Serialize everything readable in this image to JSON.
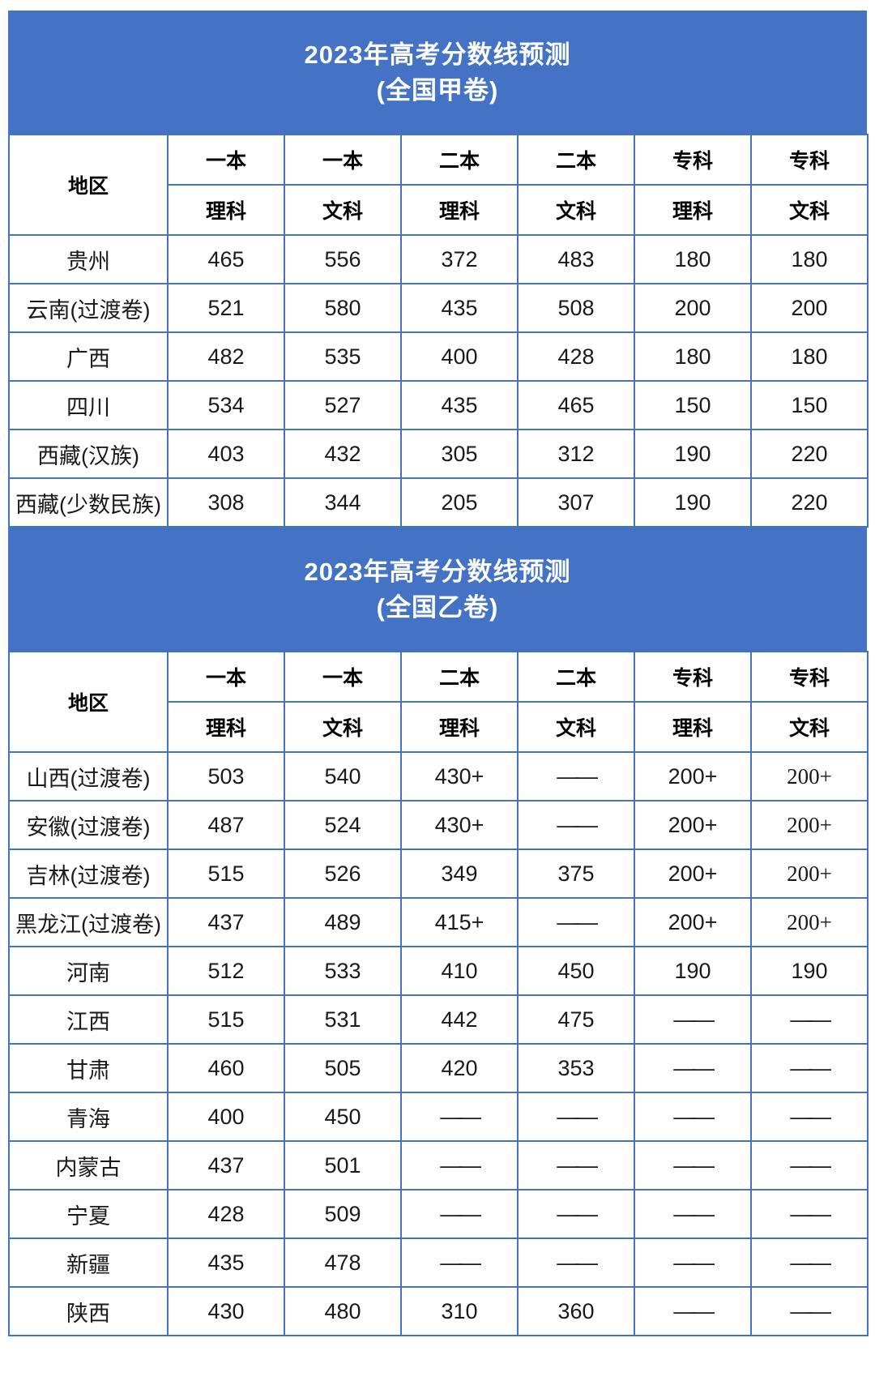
{
  "colors": {
    "band_background": "#4472C4",
    "grid_border": "#4472C4",
    "band_text": "#FFFFFF",
    "header_text": "#000000",
    "cell_text": "#1A1A1A",
    "page_background": "#FFFFFF"
  },
  "tables": [
    {
      "title_line1": "2023年高考分数线预测",
      "title_line2": "(全国甲卷)",
      "columns": {
        "region": "地区",
        "groups": [
          "一本",
          "一本",
          "二本",
          "二本",
          "专科",
          "专科"
        ],
        "subjects": [
          "理科",
          "文科",
          "理科",
          "文科",
          "理科",
          "文科"
        ]
      },
      "rows": [
        {
          "region": "贵州",
          "values": [
            "465",
            "556",
            "372",
            "483",
            "180",
            "180"
          ],
          "small_cols": []
        },
        {
          "region": "云南(过渡卷)",
          "values": [
            "521",
            "580",
            "435",
            "508",
            "200",
            "200"
          ],
          "small_cols": []
        },
        {
          "region": "广西",
          "values": [
            "482",
            "535",
            "400",
            "428",
            "180",
            "180"
          ],
          "small_cols": []
        },
        {
          "region": "四川",
          "values": [
            "534",
            "527",
            "435",
            "465",
            "150",
            "150"
          ],
          "small_cols": []
        },
        {
          "region": "西藏(汉族)",
          "values": [
            "403",
            "432",
            "305",
            "312",
            "190",
            "220"
          ],
          "small_cols": []
        },
        {
          "region": "西藏(少数民族)",
          "values": [
            "308",
            "344",
            "205",
            "307",
            "190",
            "220"
          ],
          "small_cols": []
        }
      ]
    },
    {
      "title_line1": "2023年高考分数线预测",
      "title_line2": "(全国乙卷)",
      "columns": {
        "region": "地区",
        "groups": [
          "一本",
          "一本",
          "二本",
          "二本",
          "专科",
          "专科"
        ],
        "subjects": [
          "理科",
          "文科",
          "理科",
          "文科",
          "理科",
          "文科"
        ]
      },
      "rows": [
        {
          "region": "山西(过渡卷)",
          "values": [
            "503",
            "540",
            "430+",
            "——",
            "200+",
            "200+"
          ],
          "small_cols": [
            5
          ]
        },
        {
          "region": "安徽(过渡卷)",
          "values": [
            "487",
            "524",
            "430+",
            "——",
            "200+",
            "200+"
          ],
          "small_cols": [
            5
          ]
        },
        {
          "region": "吉林(过渡卷)",
          "values": [
            "515",
            "526",
            "349",
            "375",
            "200+",
            "200+"
          ],
          "small_cols": [
            5
          ]
        },
        {
          "region": "黑龙江(过渡卷)",
          "values": [
            "437",
            "489",
            "415+",
            "——",
            "200+",
            "200+"
          ],
          "small_cols": [
            5
          ]
        },
        {
          "region": "河南",
          "values": [
            "512",
            "533",
            "410",
            "450",
            "190",
            "190"
          ],
          "small_cols": []
        },
        {
          "region": "江西",
          "values": [
            "515",
            "531",
            "442",
            "475",
            "——",
            "——"
          ],
          "small_cols": []
        },
        {
          "region": "甘肃",
          "values": [
            "460",
            "505",
            "420",
            "353",
            "——",
            "——"
          ],
          "small_cols": []
        },
        {
          "region": "青海",
          "values": [
            "400",
            "450",
            "——",
            "——",
            "——",
            "——"
          ],
          "small_cols": []
        },
        {
          "region": "内蒙古",
          "values": [
            "437",
            "501",
            "——",
            "——",
            "——",
            "——"
          ],
          "small_cols": []
        },
        {
          "region": "宁夏",
          "values": [
            "428",
            "509",
            "——",
            "——",
            "——",
            "——"
          ],
          "small_cols": []
        },
        {
          "region": "新疆",
          "values": [
            "435",
            "478",
            "——",
            "——",
            "——",
            "——"
          ],
          "small_cols": []
        },
        {
          "region": "陕西",
          "values": [
            "430",
            "480",
            "310",
            "360",
            "——",
            "——"
          ],
          "small_cols": []
        }
      ]
    }
  ],
  "chart_data": [
    {
      "type": "table",
      "title": "2023年高考分数线预测 (全国甲卷)",
      "columns": [
        "地区",
        "一本理科",
        "一本文科",
        "二本理科",
        "二本文科",
        "专科理科",
        "专科文科"
      ],
      "rows": [
        [
          "贵州",
          "465",
          "556",
          "372",
          "483",
          "180",
          "180"
        ],
        [
          "云南(过渡卷)",
          "521",
          "580",
          "435",
          "508",
          "200",
          "200"
        ],
        [
          "广西",
          "482",
          "535",
          "400",
          "428",
          "180",
          "180"
        ],
        [
          "四川",
          "534",
          "527",
          "435",
          "465",
          "150",
          "150"
        ],
        [
          "西藏(汉族)",
          "403",
          "432",
          "305",
          "312",
          "190",
          "220"
        ],
        [
          "西藏(少数民族)",
          "308",
          "344",
          "205",
          "307",
          "190",
          "220"
        ]
      ]
    },
    {
      "type": "table",
      "title": "2023年高考分数线预测 (全国乙卷)",
      "columns": [
        "地区",
        "一本理科",
        "一本文科",
        "二本理科",
        "二本文科",
        "专科理科",
        "专科文科"
      ],
      "rows": [
        [
          "山西(过渡卷)",
          "503",
          "540",
          "430+",
          "——",
          "200+",
          "200+"
        ],
        [
          "安徽(过渡卷)",
          "487",
          "524",
          "430+",
          "——",
          "200+",
          "200+"
        ],
        [
          "吉林(过渡卷)",
          "515",
          "526",
          "349",
          "375",
          "200+",
          "200+"
        ],
        [
          "黑龙江(过渡卷)",
          "437",
          "489",
          "415+",
          "——",
          "200+",
          "200+"
        ],
        [
          "河南",
          "512",
          "533",
          "410",
          "450",
          "190",
          "190"
        ],
        [
          "江西",
          "515",
          "531",
          "442",
          "475",
          "——",
          "——"
        ],
        [
          "甘肃",
          "460",
          "505",
          "420",
          "353",
          "——",
          "——"
        ],
        [
          "青海",
          "400",
          "450",
          "——",
          "——",
          "——",
          "——"
        ],
        [
          "内蒙古",
          "437",
          "501",
          "——",
          "——",
          "——",
          "——"
        ],
        [
          "宁夏",
          "428",
          "509",
          "——",
          "——",
          "——",
          "——"
        ],
        [
          "新疆",
          "435",
          "478",
          "——",
          "——",
          "——",
          "——"
        ],
        [
          "陕西",
          "430",
          "480",
          "310",
          "360",
          "——",
          "——"
        ]
      ]
    }
  ]
}
